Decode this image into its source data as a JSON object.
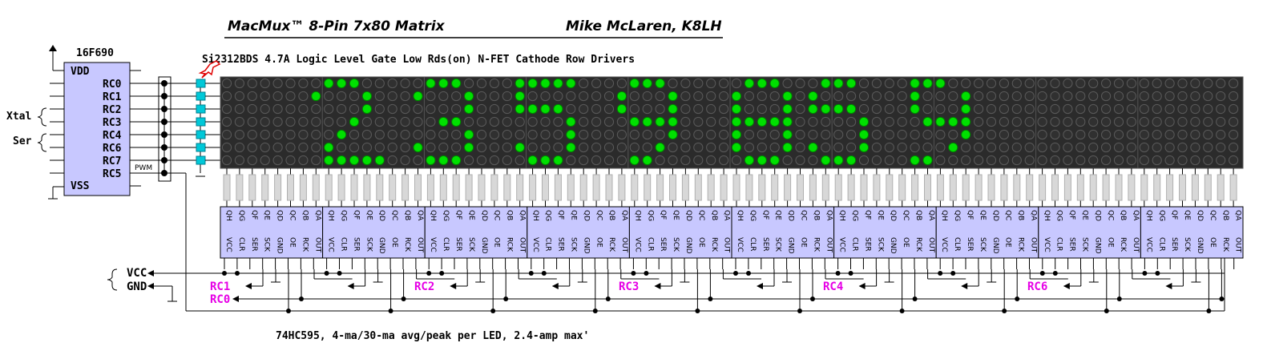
{
  "header": {
    "title": "MacMux™ 8-Pin 7x80 Matrix",
    "author": "Mike McLaren, K8LH",
    "driver_note": "Si2312BDS 4.7A Logic Level Gate Low Rds(on) N-FET Cathode Row Drivers",
    "footer_note": "74HC595, 4-ma/30-ma avg/peak per LED, 2.4-amp max'"
  },
  "mcu": {
    "part": "16F690",
    "vdd": "VDD",
    "vss": "VSS",
    "pins": [
      "RC0",
      "RC1",
      "RC2",
      "RC3",
      "RC4",
      "RC6",
      "RC7",
      "RC5"
    ],
    "xtal_label": "Xtal",
    "ser_label": "Ser",
    "pwm_label": "PWM"
  },
  "power": {
    "vcc": "VCC",
    "gnd": "GND"
  },
  "bus_labels": {
    "rc1": "RC1",
    "rc0": "RC0",
    "rc2": "RC2",
    "rc3": "RC3",
    "rc4": "RC4",
    "rc6": "RC6"
  },
  "shift_register": {
    "count": 10,
    "top_pins": [
      "QH",
      "QG",
      "QF",
      "QE",
      "QD",
      "QC",
      "QB",
      "QA"
    ],
    "bottom_pins": [
      "VCC",
      "CLR",
      "SER",
      "SCK",
      "GND",
      "OE",
      "RCK",
      "OUT"
    ]
  },
  "matrix": {
    "rows": 7,
    "cols": 80,
    "modules": 10,
    "led_on_color": "#00e000",
    "led_off_color": "#4a4a4a",
    "panel_color": "#2b2b2b",
    "lit_columns": [
      [
        1,
        2,
        3
      ],
      [
        0,
        4
      ],
      [
        4
      ],
      [
        3
      ],
      [
        2
      ],
      [
        1
      ],
      [
        0,
        1,
        2,
        3,
        4
      ]
    ],
    "lit_pattern": [
      "..........###.....###....#####....###......###...###....###.......................",
      ".........#...#...#...#...#.......#...#....#...#.#.......#...#.....................",
      ".............#.......#...####....#...#....#...#.####....#...#.....................",
      "............#......##........#....####....#####.....#....####.....................",
      "...........#.........#.......#.......#....#...#.....#.......#.....................",
      "..........#......#...#...#...#......#.....#...#.#...#......#......................",
      "..........#####...###.....###.....##.......###...###....##........................"
    ]
  },
  "colors": {
    "chip_fill": "#c8c8ff",
    "chip_stroke": "#000000",
    "resistor_fill": "#d8d8d8",
    "fet_color": "#00c8d8",
    "magenta": "#e600e6",
    "arrow_red": "#e00000"
  }
}
